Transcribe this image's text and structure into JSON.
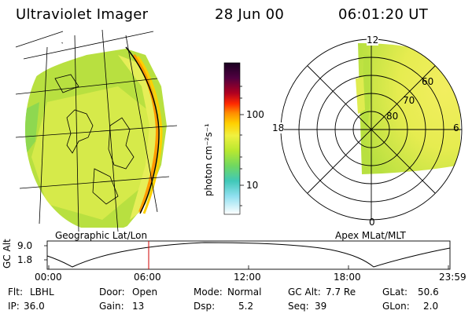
{
  "header": {
    "instrument": "Ultraviolet Imager",
    "date": "28 Jun 00",
    "time": "06:01:20 UT"
  },
  "colorbar": {
    "unit_label": "photon cm⁻²s⁻¹",
    "ticks": [
      "100",
      "10"
    ],
    "colors": [
      "#000000",
      "#3a0040",
      "#8a0030",
      "#c00000",
      "#ff3000",
      "#ff8800",
      "#ffc000",
      "#ffff40",
      "#d8f020",
      "#a0e040",
      "#60d070",
      "#40c8c0",
      "#80e0f0",
      "#ffffff"
    ]
  },
  "left_panel": {
    "label": "Geographic Lat/Lon"
  },
  "right_panel": {
    "label": "Apex MLat/MLT",
    "mlt_labels": {
      "top": "12",
      "left": "18",
      "right": "6",
      "bottom": "0"
    },
    "lat_labels": [
      "60",
      "70",
      "80"
    ]
  },
  "altitude_plot": {
    "axis_label": "GC Alt",
    "y_ticks": [
      "9.0",
      "1.8"
    ],
    "x_ticks": [
      "00:00",
      "06:00",
      "12:00",
      "18:00",
      "23:59"
    ],
    "current_time_fraction": 0.25,
    "marker_color": "#d00000"
  },
  "info": {
    "flt": {
      "label": "Flt:",
      "value": "LBHL"
    },
    "ip": {
      "label": "IP:",
      "value": "36.0"
    },
    "door": {
      "label": "Door:",
      "value": "Open"
    },
    "gain": {
      "label": "Gain:",
      "value": "13"
    },
    "mode": {
      "label": "Mode:",
      "value": "Normal"
    },
    "dsp": {
      "label": "Dsp:",
      "value": "5.2"
    },
    "gcalt": {
      "label": "GC Alt:",
      "value": "7.7 Re"
    },
    "seq": {
      "label": "Seq:",
      "value": "39"
    },
    "glat": {
      "label": "GLat:",
      "value": "50.6"
    },
    "glon": {
      "label": "GLon:",
      "value": "2.0"
    }
  }
}
